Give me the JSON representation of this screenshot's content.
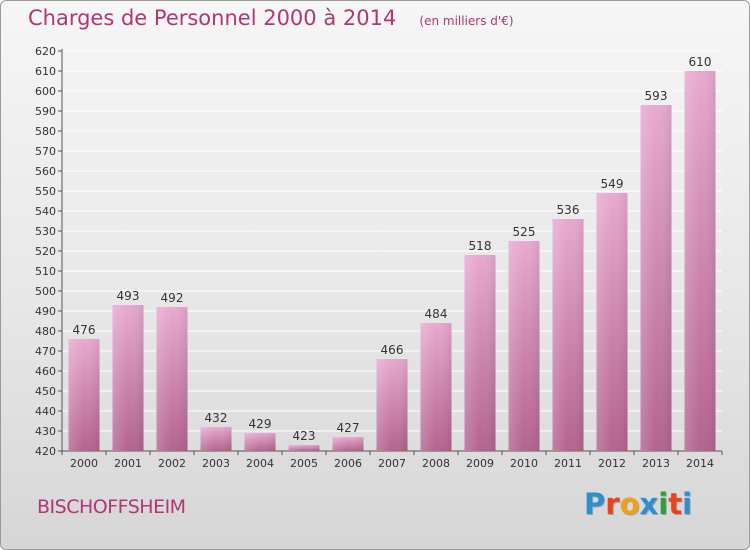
{
  "header": {
    "title": "Charges de Personnel 2000 à 2014",
    "subtitle": "(en milliers d'€)"
  },
  "footer": {
    "town": "BISCHOFFSHEIM",
    "logo": "Proxiti",
    "logo_colors": [
      "#2d8ed0",
      "#e8431c",
      "#f0a019",
      "#2d8ed0",
      "#2e9e38",
      "#e8431c",
      "#2d8ed0"
    ]
  },
  "colors": {
    "bar_top": "#e8a9cf",
    "bar_bottom": "#b3638f",
    "text_accent": "#b03676",
    "grid": "#ffffff"
  },
  "chart_data": {
    "type": "bar",
    "title": "Charges de Personnel 2000 à 2014",
    "subtitle": "(en milliers d'€)",
    "xlabel": "",
    "ylabel": "",
    "categories": [
      "2000",
      "2001",
      "2002",
      "2003",
      "2004",
      "2005",
      "2006",
      "2007",
      "2008",
      "2009",
      "2010",
      "2011",
      "2012",
      "2013",
      "2014"
    ],
    "values": [
      476,
      493,
      492,
      432,
      429,
      423,
      427,
      466,
      484,
      518,
      525,
      536,
      549,
      593,
      610
    ],
    "ylim": [
      420,
      620
    ],
    "ytick_step": 10,
    "grid": true,
    "data_labels": true
  }
}
